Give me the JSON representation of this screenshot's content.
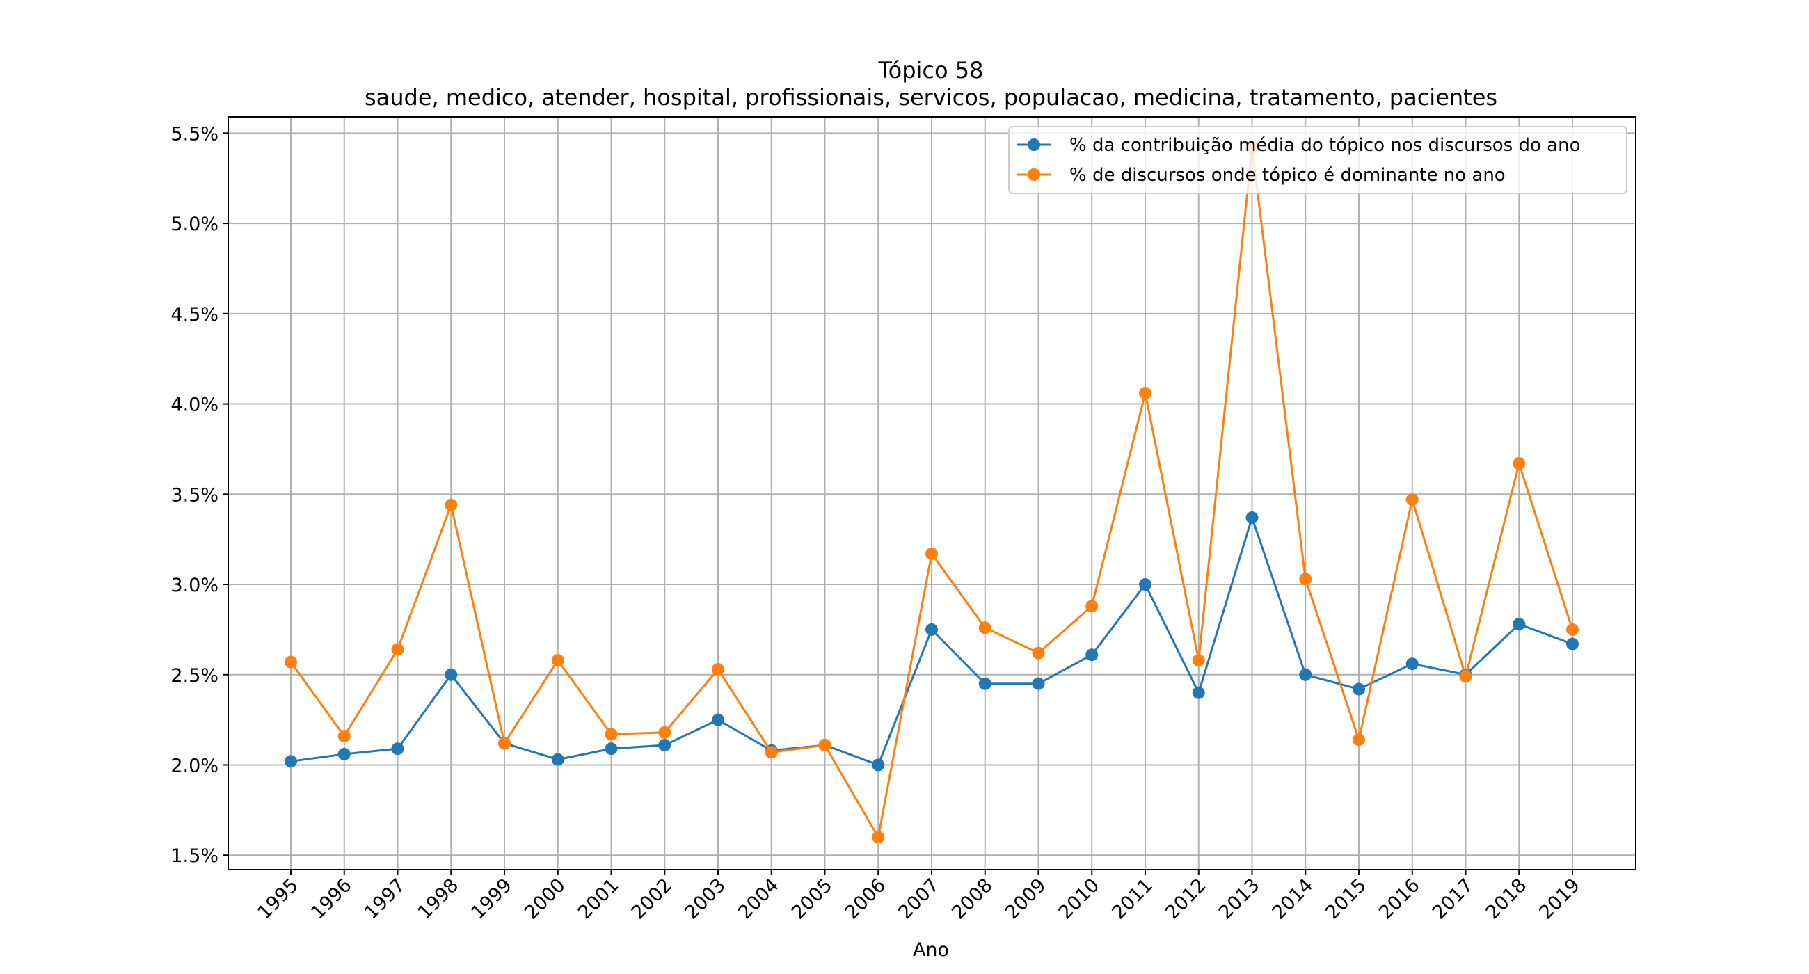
{
  "chart_data": {
    "type": "line",
    "title": "Tópico 58",
    "subtitle": "saude, medico, atender, hospital, profissionais, servicos, populacao, medicina, tratamento, pacientes",
    "xlabel": "Ano",
    "ylabel": "",
    "categories": [
      "1995",
      "1996",
      "1997",
      "1998",
      "1999",
      "2000",
      "2001",
      "2002",
      "2003",
      "2004",
      "2005",
      "2006",
      "2007",
      "2008",
      "2009",
      "2010",
      "2011",
      "2012",
      "2013",
      "2014",
      "2015",
      "2016",
      "2017",
      "2018",
      "2019"
    ],
    "yticks": [
      "1.5%",
      "2.0%",
      "2.5%",
      "3.0%",
      "3.5%",
      "4.0%",
      "4.5%",
      "5.0%",
      "5.5%"
    ],
    "ylim": [
      1.42,
      5.59
    ],
    "grid": true,
    "legend_position": "top-right",
    "series": [
      {
        "name": "% da contribuição média do tópico nos discursos do ano",
        "color": "#1f77b4",
        "values": [
          2.02,
          2.06,
          2.09,
          2.5,
          2.12,
          2.03,
          2.09,
          2.11,
          2.25,
          2.08,
          2.11,
          2.0,
          2.75,
          2.45,
          2.45,
          2.61,
          3.0,
          2.4,
          3.37,
          2.5,
          2.42,
          2.56,
          2.5,
          2.78,
          2.67
        ]
      },
      {
        "name": "% de discursos onde tópico é dominante no ano",
        "color": "#ff7f0e",
        "values": [
          2.57,
          2.16,
          2.64,
          3.44,
          2.12,
          2.58,
          2.17,
          2.18,
          2.53,
          2.07,
          2.11,
          1.6,
          3.17,
          2.76,
          2.62,
          2.88,
          4.06,
          2.58,
          5.42,
          3.03,
          2.14,
          3.47,
          2.49,
          3.67,
          2.75
        ]
      }
    ]
  }
}
